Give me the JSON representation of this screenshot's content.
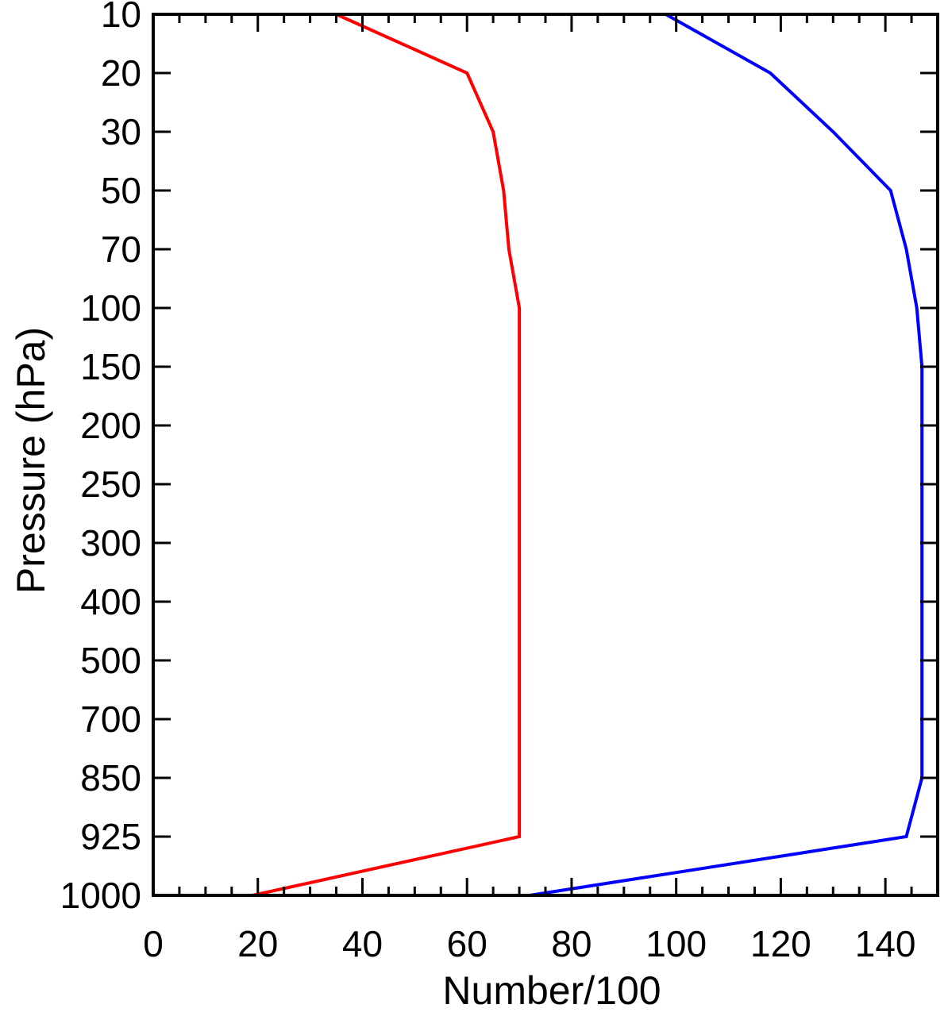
{
  "chart_data": {
    "type": "line",
    "title": "",
    "xlabel": "Number/100",
    "ylabel": "Pressure (hPa)",
    "xlim": [
      0,
      150
    ],
    "x_ticks": [
      0,
      20,
      40,
      60,
      80,
      100,
      120,
      140
    ],
    "y_categories": [
      "10",
      "20",
      "30",
      "50",
      "70",
      "100",
      "150",
      "200",
      "250",
      "300",
      "400",
      "500",
      "700",
      "850",
      "925",
      "1000"
    ],
    "grid": false,
    "legend": "none",
    "series": [
      {
        "color": "#ff0000",
        "values": [
          35,
          60,
          65,
          67,
          68,
          70,
          70,
          70,
          70,
          70,
          70,
          70,
          70,
          70,
          70,
          19
        ]
      },
      {
        "color": "#0000ff",
        "values": [
          98,
          118,
          130,
          141,
          144,
          146,
          147,
          147,
          147,
          147,
          147,
          147,
          147,
          147,
          144,
          72
        ]
      }
    ]
  }
}
